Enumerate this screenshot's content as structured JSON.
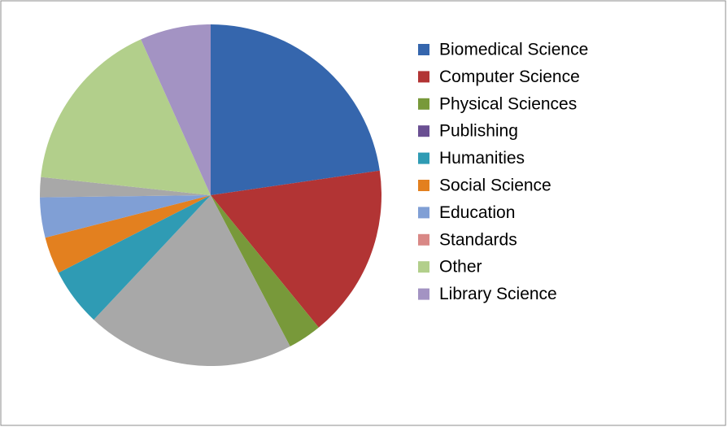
{
  "chart_data": {
    "type": "pie",
    "categories": [
      "Biomedical Science",
      "Computer Science",
      "Physical Sciences",
      "Publishing",
      null,
      "Humanities",
      "Social Science",
      "Education",
      null,
      "Standards",
      "Other",
      "Library Science"
    ],
    "values": [
      22.7,
      16.4,
      3.2,
      0,
      19.7,
      5.5,
      3.5,
      3.8,
      1.9,
      0,
      16.6,
      6.7
    ],
    "colors": [
      "#3566ad",
      "#b23434",
      "#78993a",
      "#6a4f92",
      "#a8a8a8",
      "#2f9bb4",
      "#e3801f",
      "#809fd5",
      "#a8a8a8",
      "#d98886",
      "#b2cf8b",
      "#a393c3"
    ],
    "legend": "right"
  }
}
